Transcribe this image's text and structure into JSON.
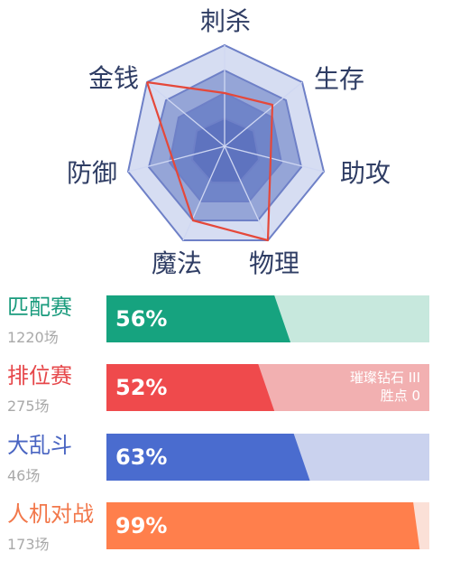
{
  "radar": {
    "labels": {
      "kill": "刺杀",
      "survival": "生存",
      "assist": "助攻",
      "physical": "物理",
      "magic": "魔法",
      "defense": "防御",
      "gold": "金钱"
    },
    "colors": {
      "outer_fill": "#d6ddf2",
      "middle_fill": "#95a5d7",
      "inner_fill": "#5e73bf",
      "stroke": "#6e80c7",
      "highlight_line": "#e5483a"
    }
  },
  "modes": [
    {
      "name": "匹配赛",
      "count": "1220场",
      "percent_text": "56%",
      "percent_value": 56,
      "fill_color": "#16a37f",
      "bg_color": "#c7e8dd",
      "text_color": "#1a9b7d"
    },
    {
      "name": "排位赛",
      "count": "275场",
      "percent_text": "52%",
      "percent_value": 52,
      "fill_color": "#ef4a4c",
      "bg_color": "#f2b0b1",
      "text_color": "#e6474a",
      "rank_line1": "璀璨钻石 III",
      "rank_line2": "胜点 0"
    },
    {
      "name": "大乱斗",
      "count": "46场",
      "percent_text": "63%",
      "percent_value": 63,
      "fill_color": "#4a6ccf",
      "bg_color": "#cad2ee",
      "text_color": "#4a65c2"
    },
    {
      "name": "人机对战",
      "count": "173场",
      "percent_text": "99%",
      "percent_value": 99,
      "fill_color": "#ff7f4c",
      "bg_color": "#fbe0d7",
      "text_color": "#f2784b"
    }
  ]
}
